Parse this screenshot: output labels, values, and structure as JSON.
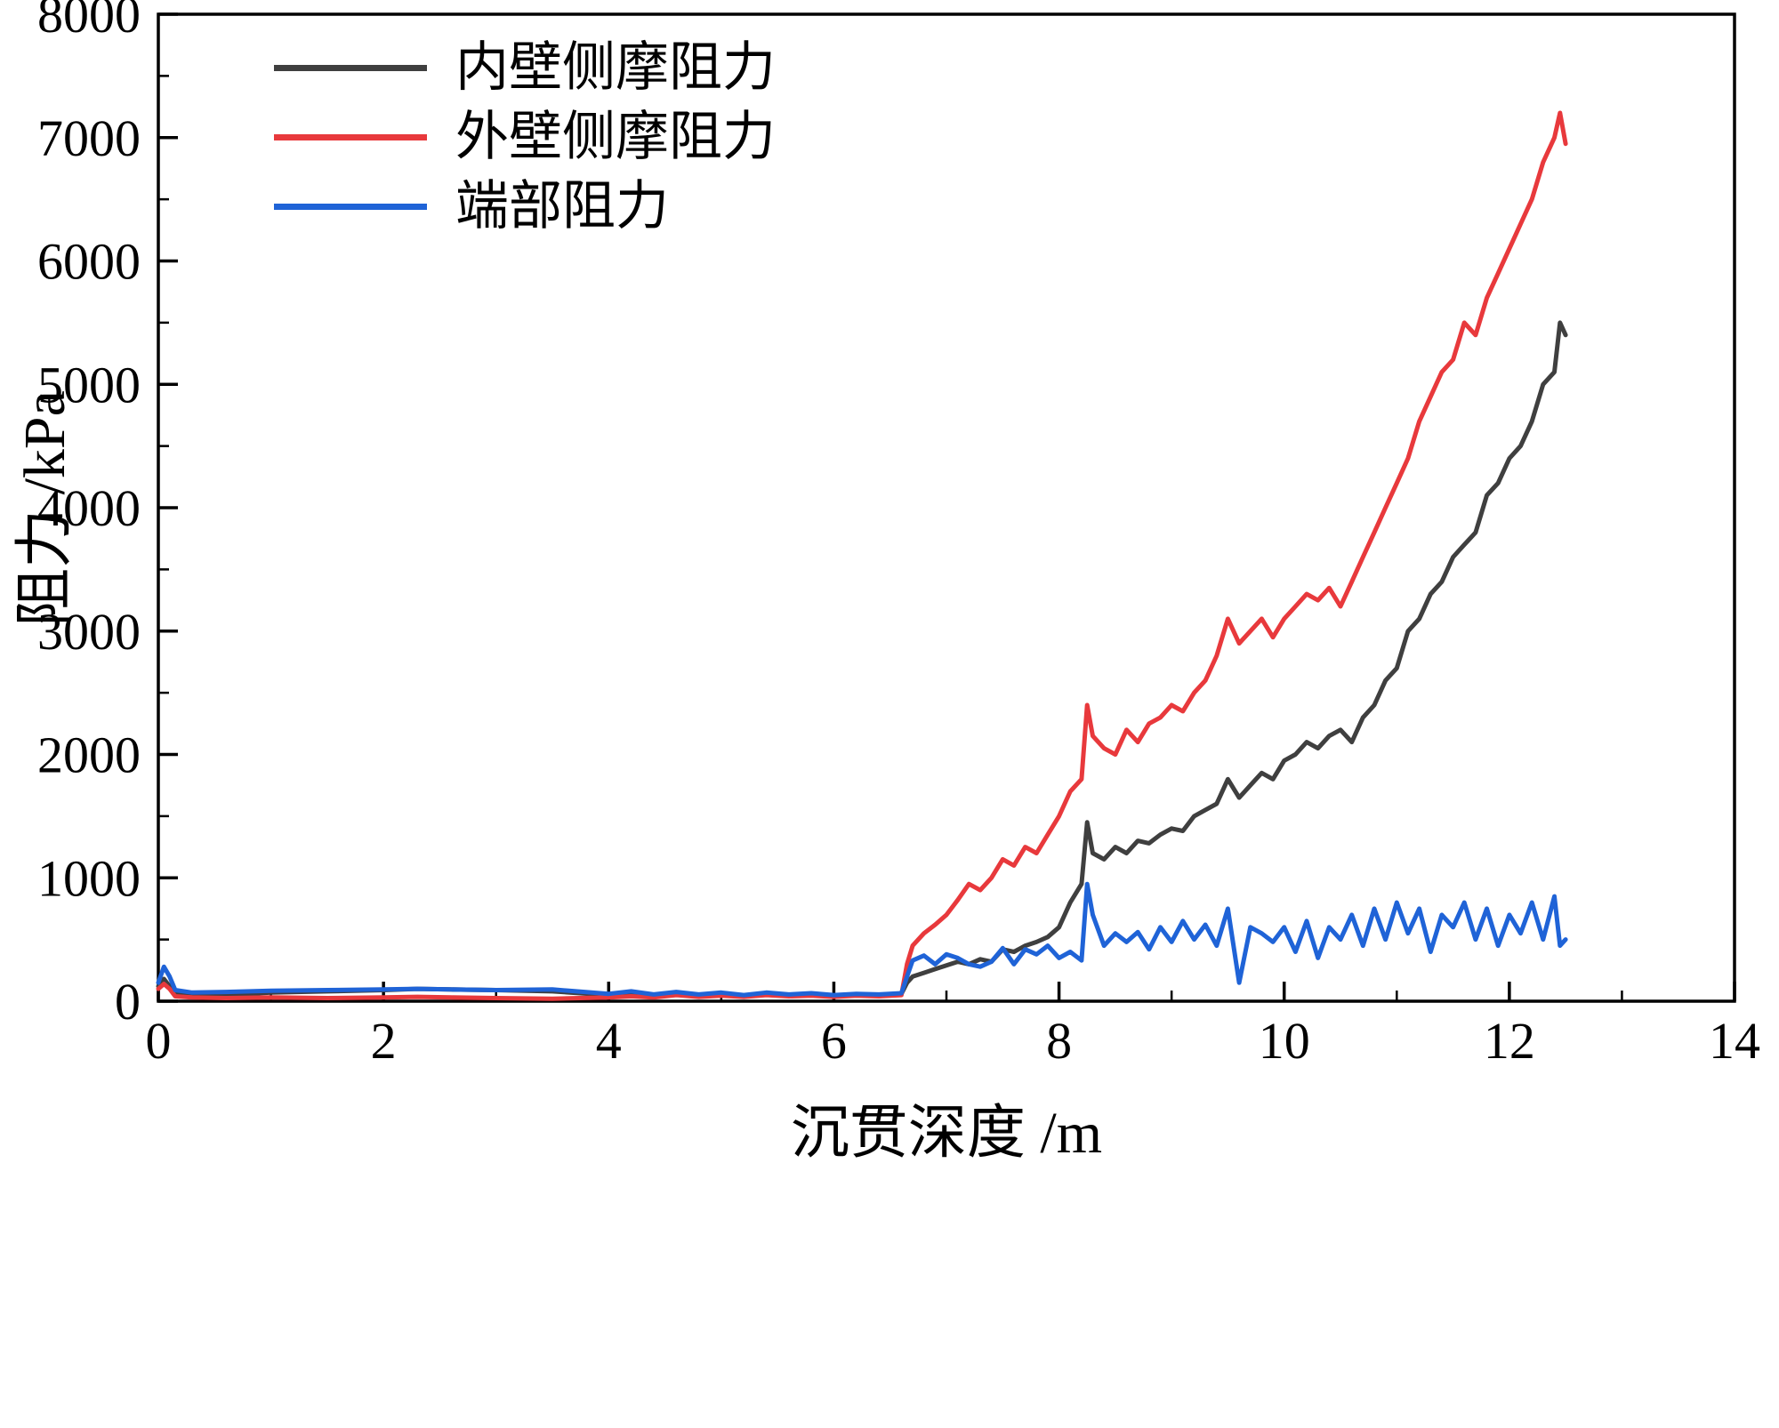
{
  "figure": {
    "background": "#ffffff",
    "frame_color": "#000000"
  },
  "chart_data": {
    "type": "line",
    "title": "",
    "xlabel": "沉贯深度  /m",
    "ylabel": "阻力 /kPa",
    "xlim": [
      0,
      14
    ],
    "ylim": [
      0,
      8000
    ],
    "xticks": [
      0,
      2,
      4,
      6,
      8,
      10,
      12,
      14
    ],
    "yticks": [
      0,
      1000,
      2000,
      3000,
      4000,
      5000,
      6000,
      7000,
      8000
    ],
    "grid": false,
    "legend_position": "top-left-inside",
    "x": [
      0,
      0.05,
      0.1,
      0.15,
      0.3,
      0.6,
      1,
      1.5,
      2,
      2.3,
      2.6,
      3,
      3.5,
      4,
      4.2,
      4.4,
      4.6,
      4.8,
      5,
      5.2,
      5.4,
      5.6,
      5.8,
      6,
      6.2,
      6.4,
      6.6,
      6.65,
      6.7,
      6.8,
      6.9,
      7,
      7.1,
      7.2,
      7.3,
      7.4,
      7.5,
      7.6,
      7.7,
      7.8,
      7.9,
      8,
      8.1,
      8.2,
      8.25,
      8.3,
      8.4,
      8.5,
      8.6,
      8.7,
      8.8,
      8.9,
      9,
      9.1,
      9.2,
      9.3,
      9.4,
      9.5,
      9.6,
      9.7,
      9.8,
      9.9,
      10,
      10.1,
      10.2,
      10.3,
      10.4,
      10.5,
      10.6,
      10.7,
      10.8,
      10.9,
      11,
      11.1,
      11.2,
      11.3,
      11.4,
      11.5,
      11.6,
      11.7,
      11.8,
      11.9,
      12,
      12.1,
      12.2,
      12.3,
      12.4,
      12.45,
      12.5
    ],
    "series": [
      {
        "name": "内壁侧摩阻力",
        "color": "#3f3f3f",
        "values": [
          120,
          180,
          120,
          60,
          40,
          50,
          70,
          80,
          90,
          100,
          95,
          90,
          80,
          50,
          60,
          45,
          65,
          50,
          60,
          45,
          60,
          50,
          55,
          45,
          55,
          50,
          60,
          150,
          200,
          230,
          260,
          290,
          320,
          300,
          340,
          320,
          420,
          400,
          450,
          480,
          520,
          600,
          800,
          950,
          1450,
          1200,
          1150,
          1250,
          1200,
          1300,
          1280,
          1350,
          1400,
          1380,
          1500,
          1550,
          1600,
          1800,
          1650,
          1750,
          1850,
          1800,
          1950,
          2000,
          2100,
          2050,
          2150,
          2200,
          2100,
          2300,
          2400,
          2600,
          2700,
          3000,
          3100,
          3300,
          3400,
          3600,
          3700,
          3800,
          4100,
          4200,
          4400,
          4500,
          4700,
          5000,
          5100,
          5500,
          5400
        ]
      },
      {
        "name": "外壁侧摩阻力",
        "color": "#e8393c",
        "values": [
          100,
          140,
          100,
          40,
          30,
          25,
          30,
          25,
          30,
          35,
          30,
          25,
          20,
          30,
          40,
          30,
          50,
          35,
          45,
          35,
          50,
          40,
          45,
          35,
          45,
          40,
          50,
          300,
          450,
          550,
          620,
          700,
          820,
          950,
          900,
          1000,
          1150,
          1100,
          1250,
          1200,
          1350,
          1500,
          1700,
          1800,
          2400,
          2150,
          2050,
          2000,
          2200,
          2100,
          2250,
          2300,
          2400,
          2350,
          2500,
          2600,
          2800,
          3100,
          2900,
          3000,
          3100,
          2950,
          3100,
          3200,
          3300,
          3250,
          3350,
          3200,
          3400,
          3600,
          3800,
          4000,
          4200,
          4400,
          4700,
          4900,
          5100,
          5200,
          5500,
          5400,
          5700,
          5900,
          6100,
          6300,
          6500,
          6800,
          7000,
          7200,
          6950
        ]
      },
      {
        "name": "端部阻力",
        "color": "#1f63d7",
        "values": [
          150,
          280,
          200,
          90,
          70,
          75,
          85,
          90,
          95,
          100,
          95,
          90,
          95,
          60,
          80,
          55,
          75,
          55,
          70,
          50,
          70,
          55,
          65,
          50,
          60,
          55,
          65,
          200,
          330,
          370,
          300,
          380,
          350,
          300,
          280,
          320,
          430,
          300,
          420,
          380,
          450,
          350,
          400,
          330,
          950,
          700,
          450,
          550,
          480,
          560,
          420,
          600,
          480,
          650,
          500,
          620,
          450,
          750,
          150,
          600,
          550,
          480,
          600,
          400,
          650,
          350,
          600,
          500,
          700,
          450,
          750,
          500,
          800,
          550,
          750,
          400,
          700,
          600,
          800,
          500,
          750,
          450,
          700,
          550,
          800,
          500,
          850,
          450,
          500
        ]
      }
    ]
  }
}
